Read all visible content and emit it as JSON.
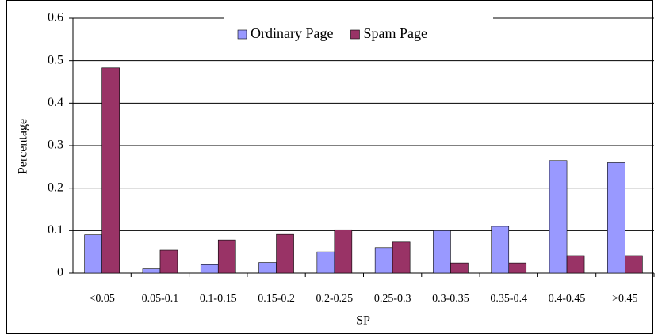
{
  "chart_data": {
    "type": "bar",
    "x_label": "SP",
    "y_label": "Percentage",
    "categories": [
      "<0.05",
      "0.05-0.1",
      "0.1-0.15",
      "0.15-0.2",
      "0.2-0.25",
      "0.25-0.3",
      "0.3-0.35",
      "0.35-0.4",
      "0.4-0.45",
      ">0.45"
    ],
    "series": [
      {
        "name": "Ordinary Page",
        "color": "#9999ff",
        "values": [
          0.09,
          0.01,
          0.02,
          0.025,
          0.05,
          0.06,
          0.1,
          0.11,
          0.265,
          0.26
        ]
      },
      {
        "name": "Spam Page",
        "color": "#993366",
        "values": [
          0.483,
          0.054,
          0.078,
          0.091,
          0.102,
          0.073,
          0.024,
          0.024,
          0.041,
          0.041
        ]
      }
    ],
    "ylim": [
      0,
      0.6
    ],
    "yticks": [
      0,
      0.1,
      0.2,
      0.3,
      0.4,
      0.5,
      0.6
    ],
    "grid": true,
    "legend": "top"
  }
}
